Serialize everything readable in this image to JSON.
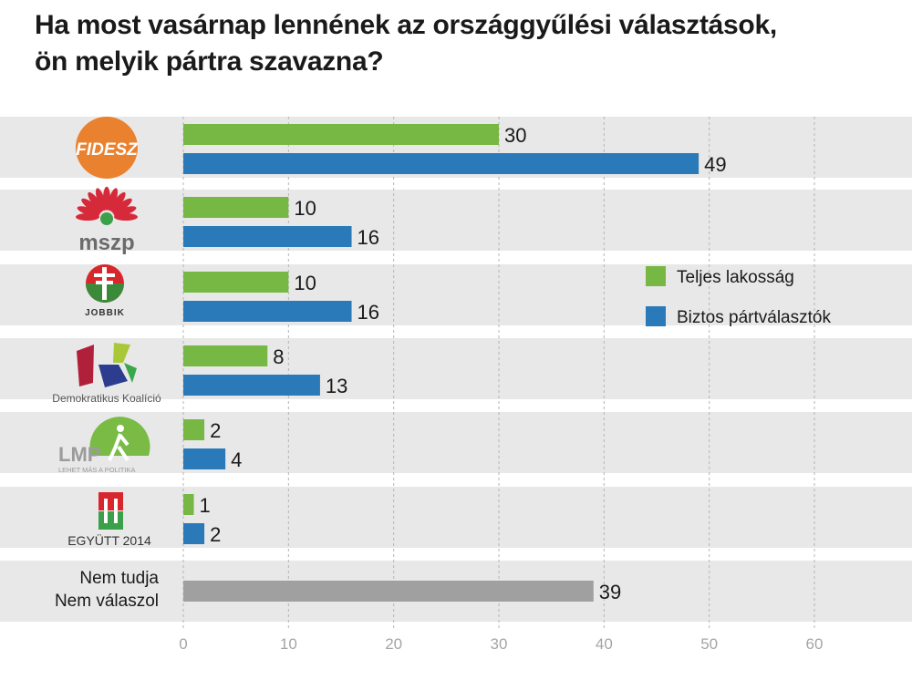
{
  "title_line1": "Ha most vasárnap lennének az országgyűlési választások,",
  "title_line2": "ön melyik pártra szavazna?",
  "chart_data": {
    "type": "bar",
    "orientation": "horizontal",
    "categories": [
      "FIDESZ",
      "mszp",
      "JOBBIK",
      "Demokratikus Koalíció",
      "LMP",
      "EGYÜTT 2014",
      "Nem tudja / Nem válaszol"
    ],
    "category_labels": {
      "dk": "Demokratikus Koalíció",
      "lmp_sub": "LEHET MÁS A POLITIKA",
      "egyutt": "EGYÜTT 2014",
      "nt1": "Nem tudja",
      "nt2": "Nem válaszol"
    },
    "logo_text": {
      "fidesz": "FIDESZ",
      "mszp": "mszp",
      "jobbik": "JOBBIK",
      "lmp": "LMP"
    },
    "series": [
      {
        "name": "Teljes lakosság",
        "color": "#76b843",
        "values": [
          30,
          10,
          10,
          8,
          2,
          1,
          null
        ]
      },
      {
        "name": "Biztos pártválasztók",
        "color": "#2a7ab9",
        "values": [
          49,
          16,
          16,
          13,
          4,
          2,
          null
        ]
      },
      {
        "color": "#a0a0a0",
        "values": [
          null,
          null,
          null,
          null,
          null,
          null,
          39
        ]
      }
    ],
    "xlim": [
      0,
      60
    ],
    "xticks": [
      0,
      10,
      20,
      30,
      40,
      50,
      60
    ],
    "grid": true,
    "legend": "right"
  }
}
